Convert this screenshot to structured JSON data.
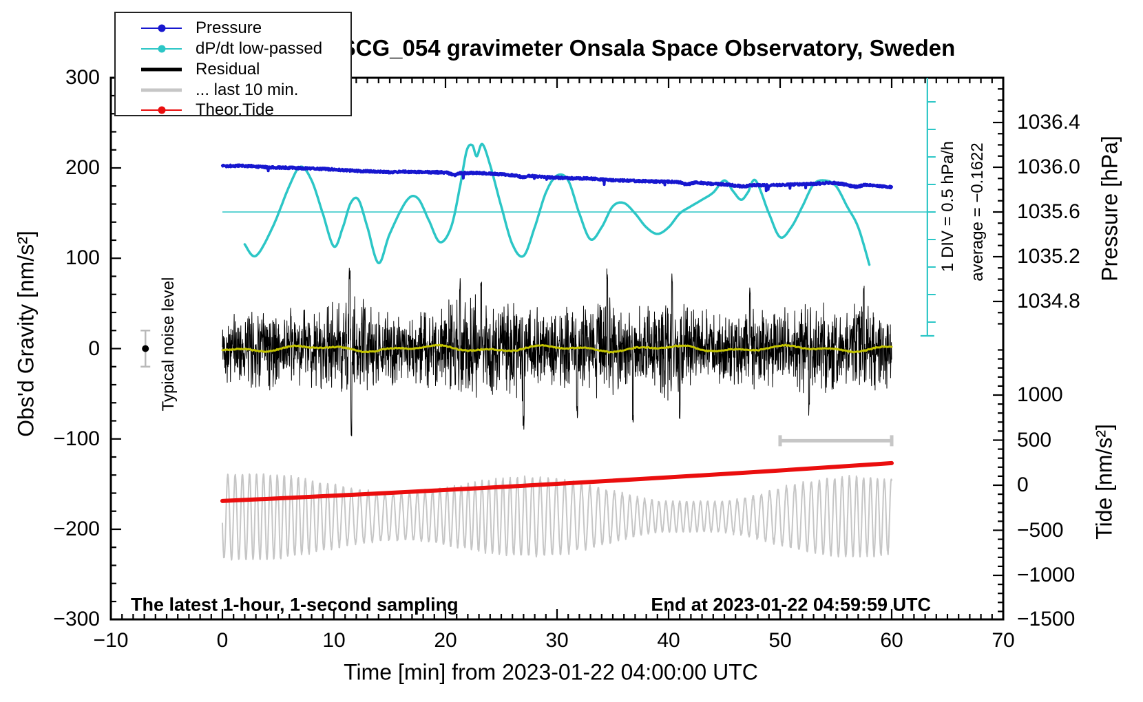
{
  "title": "SCG_054 gravimeter Onsala Space Observatory, Sweden",
  "legend": {
    "entries": [
      {
        "label": "Pressure",
        "color": "#1717cf",
        "style": "line-dot"
      },
      {
        "label": "dP/dt low-passed",
        "color": "#2cc6c6",
        "style": "line-dot"
      },
      {
        "label": "Residual",
        "color": "#000000",
        "style": "thick-line"
      },
      {
        "label": "... last 10 min.",
        "color": "#c6c6c6",
        "style": "thick-line"
      },
      {
        "label": "Theor.Tide",
        "color": "#ea0e0e",
        "style": "line-dot"
      }
    ]
  },
  "axes": {
    "x": {
      "label": "Time [min] from 2023-01-22 04:00:00 UTC",
      "tick_labels": [
        "−10",
        "0",
        "10",
        "20",
        "30",
        "40",
        "50",
        "60",
        "70"
      ],
      "tick_values": [
        -10,
        0,
        10,
        20,
        30,
        40,
        50,
        60,
        70
      ],
      "minor_step": 1,
      "range": [
        -10,
        70
      ]
    },
    "y_left": {
      "label": "Obs'd Gravity [nm/s²]",
      "tick_labels": [
        "300",
        "200",
        "100",
        "0",
        "−100",
        "−200",
        "−300"
      ],
      "tick_values": [
        300,
        200,
        100,
        0,
        -100,
        -200,
        -300
      ],
      "minor_step": 20,
      "range": [
        -300,
        300
      ]
    },
    "y_right_pressure": {
      "label": "Pressure [hPa]",
      "tick_labels": [
        "1036.4",
        "1036.0",
        "1035.6",
        "1035.2",
        "1034.8"
      ],
      "tick_values": [
        1036.4,
        1036.0,
        1035.6,
        1035.2,
        1034.8
      ],
      "minor_step": 0.1
    },
    "y_right_tide": {
      "label": "Tide [nm/s²]",
      "tick_labels": [
        "1000",
        "500",
        "0",
        "−500",
        "−1000",
        "−1500"
      ],
      "tick_values": [
        1000,
        500,
        0,
        -500,
        -1000,
        -1500
      ],
      "minor_step": 100
    }
  },
  "annotations": {
    "scale_bar_label": "1 DIV = 0.5 hPa/h",
    "average_label": "average = −0.1622",
    "noise_label": "Typical noise level",
    "sampling_note": "The latest 1-hour, 1-second sampling",
    "end_note": "End at 2023-01-22 04:59:59 UTC"
  },
  "chart_data": {
    "type": "line",
    "x_unit": "min",
    "x_range_data": [
      0,
      60
    ],
    "series": [
      {
        "name": "Pressure",
        "axis": "pressure_hPa",
        "color": "#1717cf",
        "anchors": [
          [
            0,
            1036.01
          ],
          [
            2,
            1036.013
          ],
          [
            4,
            1036.0
          ],
          [
            6,
            1035.995
          ],
          [
            8,
            1035.988
          ],
          [
            10,
            1035.98
          ],
          [
            12,
            1035.968
          ],
          [
            14,
            1035.96
          ],
          [
            15,
            1035.956
          ],
          [
            16,
            1035.96
          ],
          [
            18,
            1035.956
          ],
          [
            20,
            1035.952
          ],
          [
            20.8,
            1035.93
          ],
          [
            21.4,
            1035.947
          ],
          [
            23,
            1035.948
          ],
          [
            24,
            1035.942
          ],
          [
            26,
            1035.93
          ],
          [
            27,
            1035.91
          ],
          [
            27.6,
            1035.922
          ],
          [
            29,
            1035.912
          ],
          [
            31,
            1035.902
          ],
          [
            33,
            1035.898
          ],
          [
            35,
            1035.885
          ],
          [
            37,
            1035.878
          ],
          [
            39,
            1035.872
          ],
          [
            40.8,
            1035.868
          ],
          [
            41.6,
            1035.848
          ],
          [
            42.4,
            1035.862
          ],
          [
            44,
            1035.852
          ],
          [
            45.5,
            1035.842
          ],
          [
            46.6,
            1035.83
          ],
          [
            47.6,
            1035.84
          ],
          [
            49,
            1035.838
          ],
          [
            51,
            1035.845
          ],
          [
            53,
            1035.852
          ],
          [
            54.6,
            1035.86
          ],
          [
            55.6,
            1035.85
          ],
          [
            56.8,
            1035.826
          ],
          [
            57.6,
            1035.842
          ],
          [
            58.6,
            1035.834
          ],
          [
            60,
            1035.822
          ]
        ],
        "noise_hPa": 0.008
      },
      {
        "name": "dP/dt low-passed",
        "axis": "hPa_per_h",
        "color": "#2cc6c6",
        "average": -0.1622,
        "div_hpa_per_h": 0.5,
        "anchors": [
          [
            2,
            -0.75
          ],
          [
            3,
            -0.96
          ],
          [
            4.5,
            -0.44
          ],
          [
            6,
            0.31
          ],
          [
            7,
            0.66
          ],
          [
            8,
            0.41
          ],
          [
            9,
            -0.19
          ],
          [
            10,
            -0.79
          ],
          [
            10.8,
            -0.44
          ],
          [
            11.5,
            0.0
          ],
          [
            12.2,
            0.06
          ],
          [
            13,
            -0.44
          ],
          [
            14,
            -1.09
          ],
          [
            15,
            -0.56
          ],
          [
            16.5,
            0.04
          ],
          [
            17.5,
            0.09
          ],
          [
            18.5,
            -0.31
          ],
          [
            19.5,
            -0.71
          ],
          [
            20.5,
            -0.44
          ],
          [
            21.3,
            0.3
          ],
          [
            21.9,
            0.95
          ],
          [
            22.4,
            1.05
          ],
          [
            22.8,
            0.85
          ],
          [
            23.3,
            1.07
          ],
          [
            24,
            0.69
          ],
          [
            25,
            -0.06
          ],
          [
            26,
            -0.75
          ],
          [
            27,
            -0.96
          ],
          [
            28,
            -0.44
          ],
          [
            29,
            0.19
          ],
          [
            30,
            0.5
          ],
          [
            31,
            0.41
          ],
          [
            32,
            -0.19
          ],
          [
            33,
            -0.66
          ],
          [
            34,
            -0.44
          ],
          [
            35,
            -0.06
          ],
          [
            36,
            0.0
          ],
          [
            37,
            -0.19
          ],
          [
            38,
            -0.44
          ],
          [
            39,
            -0.56
          ],
          [
            40,
            -0.44
          ],
          [
            41,
            -0.19
          ],
          [
            42,
            -0.06
          ],
          [
            43,
            0.06
          ],
          [
            44,
            0.19
          ],
          [
            45,
            0.41
          ],
          [
            45.8,
            0.21
          ],
          [
            46.5,
            0.06
          ],
          [
            47.1,
            0.19
          ],
          [
            47.8,
            0.41
          ],
          [
            49,
            -0.19
          ],
          [
            50,
            -0.62
          ],
          [
            51,
            -0.44
          ],
          [
            52,
            -0.06
          ],
          [
            53,
            0.34
          ],
          [
            54,
            0.41
          ],
          [
            55,
            0.31
          ],
          [
            56,
            -0.06
          ],
          [
            57,
            -0.44
          ],
          [
            58,
            -1.12
          ]
        ]
      },
      {
        "name": "Residual",
        "axis": "gravity_nm_s2",
        "color": "#000000",
        "mean": 0,
        "envelope": [
          [
            0,
            36
          ],
          [
            2,
            42
          ],
          [
            4,
            48
          ],
          [
            6,
            42
          ],
          [
            8,
            46
          ],
          [
            10,
            52
          ],
          [
            11.5,
            62
          ],
          [
            13,
            50
          ],
          [
            14,
            46
          ],
          [
            16,
            36
          ],
          [
            18,
            44
          ],
          [
            20,
            52
          ],
          [
            22,
            58
          ],
          [
            24,
            52
          ],
          [
            26,
            54
          ],
          [
            27,
            60
          ],
          [
            28,
            48
          ],
          [
            30,
            42
          ],
          [
            32,
            50
          ],
          [
            34,
            58
          ],
          [
            35,
            52
          ],
          [
            36,
            46
          ],
          [
            38,
            48
          ],
          [
            40,
            58
          ],
          [
            42,
            46
          ],
          [
            44,
            42
          ],
          [
            46,
            40
          ],
          [
            48,
            44
          ],
          [
            50,
            42
          ],
          [
            52,
            52
          ],
          [
            54,
            48
          ],
          [
            56,
            46
          ],
          [
            58,
            50
          ],
          [
            60,
            44
          ]
        ],
        "spikes": [
          [
            11.4,
            95,
            1
          ],
          [
            11.55,
            100,
            -1
          ],
          [
            21.3,
            85,
            1
          ],
          [
            23.2,
            80,
            1
          ],
          [
            27.0,
            95,
            -1
          ],
          [
            31.8,
            80,
            -1
          ],
          [
            34.5,
            90,
            1
          ],
          [
            36.8,
            85,
            -1
          ],
          [
            40.3,
            85,
            1
          ],
          [
            41.0,
            80,
            -1
          ],
          [
            47.3,
            75,
            1
          ],
          [
            52.6,
            75,
            -1
          ],
          [
            57.5,
            70,
            1
          ]
        ]
      },
      {
        "name": "Residual low-passed",
        "axis": "gravity_nm_s2",
        "color": "#c3c300",
        "mean": 0,
        "amplitude": 3
      },
      {
        "name": "... last 10 min.",
        "axis": "gravity_nm_s2",
        "color": "#c6c6c6",
        "center": -186,
        "period_min": 0.68,
        "amp_range": [
          22,
          62
        ]
      },
      {
        "name": "Theor.Tide",
        "axis": "tide_nm_s2",
        "color": "#ea0e0e",
        "anchors": [
          [
            0,
            -175
          ],
          [
            30,
            15
          ],
          [
            60,
            245
          ]
        ]
      }
    ],
    "markers": {
      "noise_level": {
        "x_min": -6.9,
        "value": 0,
        "error": 20
      },
      "last10_bar": {
        "from_min": 50,
        "to_min": 60,
        "gravity": -102
      },
      "dpdt_scale_bar": {
        "x_min": 63.2,
        "divisions": 9,
        "div_hpa_per_h": 0.5
      }
    },
    "ui_colors": {
      "frame": "#000000",
      "marker_gray": "#b9b9b9"
    }
  }
}
